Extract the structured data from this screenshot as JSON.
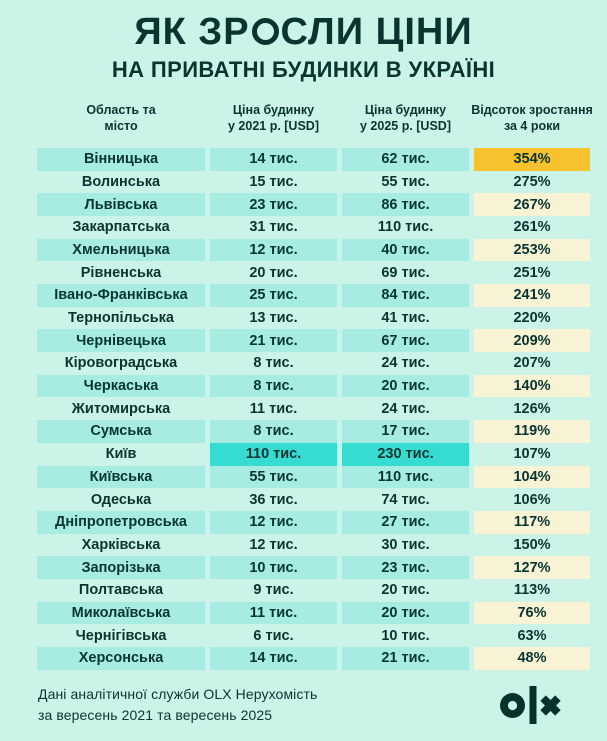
{
  "colors": {
    "background": "#CBF3E8",
    "row_teal": "#A6ECE2",
    "kyiv_highlight": "#36DCD2",
    "top_growth_gold": "#F8C12F",
    "growth_cream": "#F8F3D4",
    "text_dark": "#093530"
  },
  "header": {
    "title_part1": "ЯК ЗР",
    "title_o": "О",
    "title_part2": "СЛИ ЦІНИ",
    "subtitle": "НА ПРИВАТНІ БУДИНКИ В УКРАЇНІ"
  },
  "chart_data": {
    "type": "table",
    "title": "ЯК ЗРОСЛИ ЦІНИ НА ПРИВАТНІ БУДИНКИ В УКРАЇНІ",
    "columns": [
      {
        "line1": "Область та",
        "line2": "місто"
      },
      {
        "line1": "Ціна будинку",
        "line2": "у 2021 р. [USD]"
      },
      {
        "line1": "Ціна будинку",
        "line2": "у 2025 р. [USD]"
      },
      {
        "line1": "Відсоток зростання",
        "line2": "за 4 роки"
      }
    ],
    "units": {
      "price_suffix": " тис.",
      "growth_suffix": "%"
    },
    "rows": [
      {
        "region": "Вінницька",
        "p2021": 14,
        "p2025": 62,
        "growth": 354,
        "hl": "gold"
      },
      {
        "region": "Волинська",
        "p2021": 15,
        "p2025": 55,
        "growth": 275
      },
      {
        "region": "Львівська",
        "p2021": 23,
        "p2025": 86,
        "growth": 267
      },
      {
        "region": "Закарпатська",
        "p2021": 31,
        "p2025": 110,
        "growth": 261
      },
      {
        "region": "Хмельницька",
        "p2021": 12,
        "p2025": 40,
        "growth": 253
      },
      {
        "region": "Рівненська",
        "p2021": 20,
        "p2025": 69,
        "growth": 251
      },
      {
        "region": "Івано-Франківська",
        "p2021": 25,
        "p2025": 84,
        "growth": 241
      },
      {
        "region": "Тернопільська",
        "p2021": 13,
        "p2025": 41,
        "growth": 220
      },
      {
        "region": "Чернівецька",
        "p2021": 21,
        "p2025": 67,
        "growth": 209
      },
      {
        "region": "Кіровоградська",
        "p2021": 8,
        "p2025": 24,
        "growth": 207
      },
      {
        "region": "Черкаська",
        "p2021": 8,
        "p2025": 20,
        "growth": 140
      },
      {
        "region": "Житомирська",
        "p2021": 11,
        "p2025": 24,
        "growth": 126
      },
      {
        "region": "Сумська",
        "p2021": 8,
        "p2025": 17,
        "growth": 119
      },
      {
        "region": "Київ",
        "p2021": 110,
        "p2025": 230,
        "growth": 107,
        "hl": "prices"
      },
      {
        "region": "Київська",
        "p2021": 55,
        "p2025": 110,
        "growth": 104
      },
      {
        "region": "Одеська",
        "p2021": 36,
        "p2025": 74,
        "growth": 106
      },
      {
        "region": "Дніпропетровська",
        "p2021": 12,
        "p2025": 27,
        "growth": 117
      },
      {
        "region": "Харківська",
        "p2021": 12,
        "p2025": 30,
        "growth": 150
      },
      {
        "region": "Запорізька",
        "p2021": 10,
        "p2025": 23,
        "growth": 127
      },
      {
        "region": "Полтавська",
        "p2021": 9,
        "p2025": 20,
        "growth": 113
      },
      {
        "region": "Миколаївська",
        "p2021": 11,
        "p2025": 20,
        "growth": 76
      },
      {
        "region": "Чернігівська",
        "p2021": 6,
        "p2025": 10,
        "growth": 63
      },
      {
        "region": "Херсонська",
        "p2021": 14,
        "p2025": 21,
        "growth": 48
      }
    ]
  },
  "footer": {
    "line1": "Дані аналітичної служби OLX Нерухомість",
    "line2": "за вересень 2021 та вересень 2025",
    "logo": "olx"
  }
}
